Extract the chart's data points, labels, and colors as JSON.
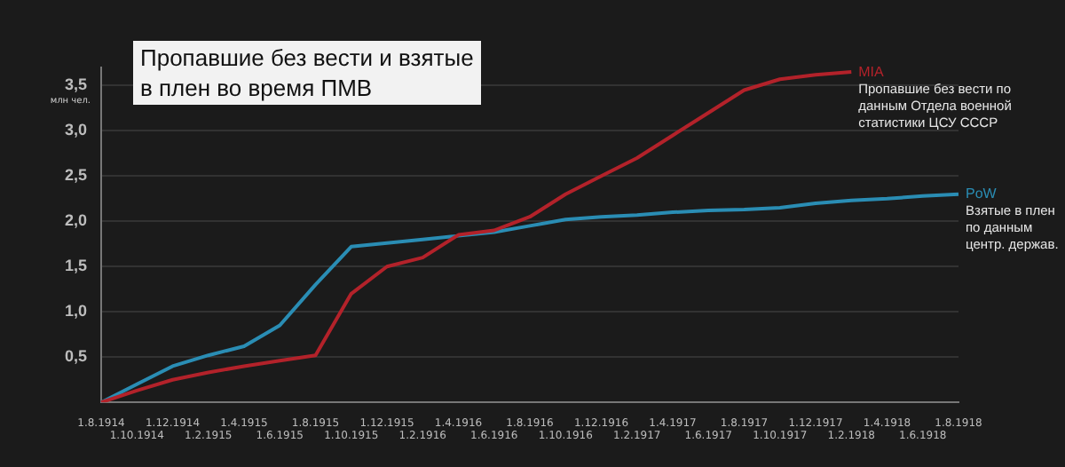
{
  "chart_data": {
    "type": "line",
    "title": "Пропавшие без вести и взятые в плен во время ПМВ",
    "ylabel": "млн чел.",
    "categories": [
      "1.8.1914",
      "1.10.1914",
      "1.12.1914",
      "1.2.1915",
      "1.4.1915",
      "1.6.1915",
      "1.8.1915",
      "1.10.1915",
      "1.12.1915",
      "1.2.1916",
      "1.4.1916",
      "1.6.1916",
      "1.8.1916",
      "1.10.1916",
      "1.12.1916",
      "1.2.1917",
      "1.4.1917",
      "1.6.1917",
      "1.8.1917",
      "1.10.1917",
      "1.12.1917",
      "1.2.1918",
      "1.4.1918",
      "1.6.1918",
      "1.8.1918"
    ],
    "series": [
      {
        "name": "MIA",
        "color": "#b3222a",
        "values": [
          0,
          0.13,
          0.25,
          0.33,
          0.4,
          0.46,
          0.52,
          1.2,
          1.5,
          1.6,
          1.85,
          1.9,
          2.05,
          2.3,
          2.5,
          2.7,
          2.95,
          3.2,
          3.45,
          3.57,
          3.62,
          3.65,
          null,
          null,
          null
        ]
      },
      {
        "name": "PoW",
        "color": "#2a8db4",
        "values": [
          0,
          0.2,
          0.4,
          0.52,
          0.62,
          0.85,
          1.3,
          1.72,
          1.76,
          1.8,
          1.84,
          1.88,
          1.95,
          2.02,
          2.05,
          2.07,
          2.1,
          2.12,
          2.13,
          2.15,
          2.2,
          2.23,
          2.25,
          2.28,
          2.3
        ]
      }
    ],
    "annotations": [
      "Пропавшие без вести по данным Отдела военной статистики ЦСУ СССР",
      "Взятые в плен по данным центр. держав."
    ],
    "ylim": [
      0,
      3.7
    ],
    "yticks": [
      {
        "value": 0.5,
        "label": "0,5"
      },
      {
        "value": 1,
        "label": "1,0"
      },
      {
        "value": 1.5,
        "label": "1,5"
      },
      {
        "value": 2,
        "label": "2,0"
      },
      {
        "value": 2.5,
        "label": "2,5"
      },
      {
        "value": 3,
        "label": "3,0"
      },
      {
        "value": 3.5,
        "label": "3,5"
      }
    ],
    "grid": "y",
    "legend": false,
    "marker": "none",
    "line_style": "solid"
  }
}
